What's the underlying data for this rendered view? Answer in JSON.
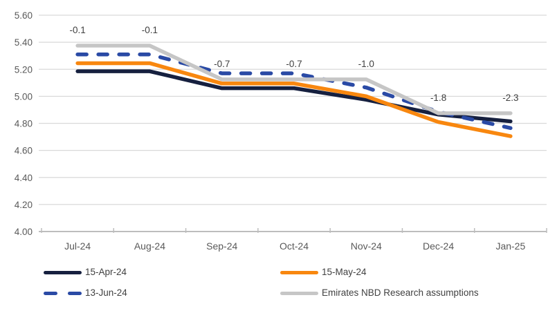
{
  "chart_data": {
    "type": "line",
    "title": "",
    "xlabel": "",
    "ylabel": "",
    "categories": [
      "Jul-24",
      "Aug-24",
      "Sep-24",
      "Oct-24",
      "Nov-24",
      "Dec-24",
      "Jan-25"
    ],
    "series": [
      {
        "name": "15-Apr-24",
        "color": "#16203f",
        "style": "solid",
        "values": [
          5.185,
          5.185,
          5.06,
          5.06,
          4.975,
          4.865,
          4.815
        ]
      },
      {
        "name": "15-May-24",
        "color": "#f8870f",
        "style": "solid",
        "values": [
          5.245,
          5.245,
          5.095,
          5.095,
          5.0,
          4.81,
          4.705
        ]
      },
      {
        "name": "13-Jun-24",
        "color": "#2a4aa5",
        "style": "dashed",
        "values": [
          5.31,
          5.31,
          5.17,
          5.17,
          5.065,
          4.885,
          4.765
        ]
      },
      {
        "name": "Emirates NBD Research assumptions",
        "color": "#c6c6c6",
        "style": "solid",
        "values": [
          5.375,
          5.375,
          5.125,
          5.125,
          5.125,
          4.875,
          4.875
        ]
      }
    ],
    "point_labels": {
      "attached_to": "Emirates NBD Research assumptions",
      "values": [
        "-0.1",
        "-0.1",
        "-0.7",
        "-0.7",
        "-1.0",
        "-1.8",
        "-2.3"
      ]
    },
    "ylim": [
      4.0,
      5.6
    ],
    "ytick_step": 0.2,
    "yticks": [
      "4.00",
      "4.20",
      "4.40",
      "4.60",
      "4.80",
      "5.00",
      "5.20",
      "5.40",
      "5.60"
    ],
    "grid": true,
    "legend_position": "bottom",
    "colors": {
      "grid": "#d9d9d9",
      "axis": "#bdbdbd",
      "tick_label": "#595959",
      "data_label": "#404040",
      "legend_text": "#404040",
      "background": "#ffffff"
    }
  }
}
